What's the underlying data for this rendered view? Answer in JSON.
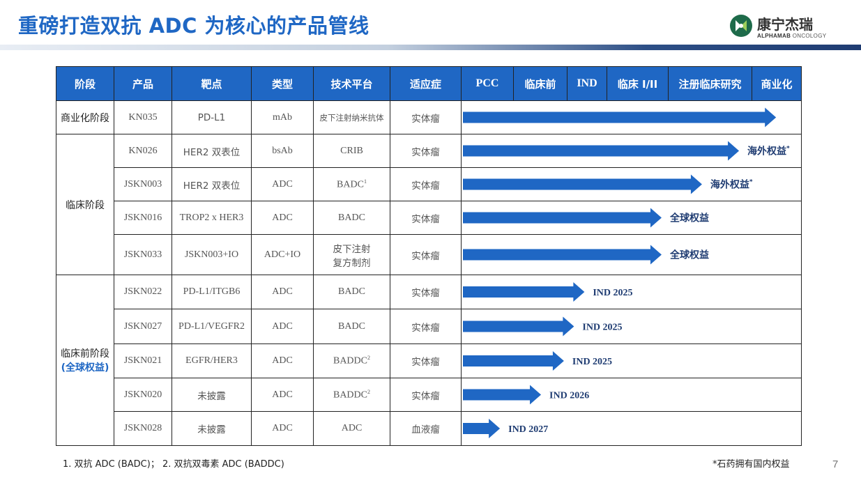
{
  "title": "重磅打造双抗 ADC 为核心的产品管线",
  "logo": {
    "cn": "康宁杰瑞",
    "en_bold": "ALPHAMAB",
    "en_light": "ONCOLOGY"
  },
  "headers": [
    "阶段",
    "产品",
    "靶点",
    "类型",
    "技术平台",
    "适应症",
    "PCC",
    "临床前",
    "IND",
    "临床 I/II",
    "注册临床研究",
    "商业化"
  ],
  "stages": [
    {
      "label": "商业化阶段",
      "sub": ""
    },
    {
      "label": "临床阶段",
      "sub": ""
    },
    {
      "label": "临床前阶段",
      "sub": "(全球权益)"
    }
  ],
  "rows": [
    {
      "product": "KN035",
      "target": "PD-L1",
      "type": "mAb",
      "platform": "皮下注射纳米抗体",
      "platform_sup": "",
      "indication": "实体瘤",
      "progress": 0.93,
      "label": "",
      "label_sup": ""
    },
    {
      "product": "KN026",
      "target": "HER2 双表位",
      "type": "bsAb",
      "platform": "CRIB",
      "platform_sup": "",
      "indication": "实体瘤",
      "progress": 0.82,
      "label": "海外权益",
      "label_sup": "*"
    },
    {
      "product": "JSKN003",
      "target": "HER2 双表位",
      "type": "ADC",
      "platform": "BADC",
      "platform_sup": "1",
      "indication": "实体瘤",
      "progress": 0.71,
      "label": "海外权益",
      "label_sup": "*"
    },
    {
      "product": "JSKN016",
      "target": "TROP2 x HER3",
      "type": "ADC",
      "platform": "BADC",
      "platform_sup": "",
      "indication": "实体瘤",
      "progress": 0.59,
      "label": "全球权益",
      "label_sup": ""
    },
    {
      "product": "JSKN033",
      "target": "JSKN003+IO",
      "type": "ADC+IO",
      "platform": "皮下注射",
      "platform2": "复方制剂",
      "platform_sup": "",
      "indication": "实体瘤",
      "progress": 0.59,
      "label": "全球权益",
      "label_sup": ""
    },
    {
      "product": "JSKN022",
      "target": "PD-L1/ITGB6",
      "type": "ADC",
      "platform": "BADC",
      "platform_sup": "",
      "indication": "实体瘤",
      "progress": 0.361,
      "label": "IND 2025",
      "label_sup": ""
    },
    {
      "product": "JSKN027",
      "target": "PD-L1/VEGFR2",
      "type": "ADC",
      "platform": "BADC",
      "platform_sup": "",
      "indication": "实体瘤",
      "progress": 0.33,
      "label": "IND 2025",
      "label_sup": ""
    },
    {
      "product": "JSKN021",
      "target": "EGFR/HER3",
      "type": "ADC",
      "platform": "BADDC",
      "platform_sup": "2",
      "indication": "实体瘤",
      "progress": 0.3,
      "label": "IND 2025",
      "label_sup": ""
    },
    {
      "product": "JSKN020",
      "target": "未披露",
      "type": "ADC",
      "platform": "BADDC",
      "platform_sup": "2",
      "indication": "实体瘤",
      "progress": 0.232,
      "label": "IND 2026",
      "label_sup": ""
    },
    {
      "product": "JSKN028",
      "target": "未披露",
      "type": "ADC",
      "platform": "ADC",
      "platform_sup": "",
      "indication": "血液瘤",
      "progress": 0.11,
      "label": "IND 2027",
      "label_sup": ""
    }
  ],
  "footnote_left": "1. 双抗 ADC (BADC)；  2. 双抗双毒素 ADC (BADDC)",
  "footnote_right": "*石药拥有国内权益",
  "page_number": "7",
  "colors": {
    "accent": "#1f67c4",
    "dark_band": "#1f3c72"
  }
}
